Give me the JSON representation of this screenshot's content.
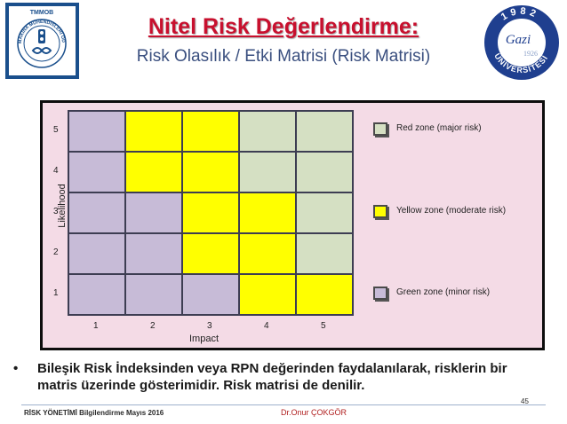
{
  "header": {
    "title": "Nitel Risk Değerlendirme:",
    "subtitle": "Risk Olasılık / Etki Matrisi (Risk Matrisi)"
  },
  "logos": {
    "left": {
      "name": "tmmob-makina-muhendisleri-odasi-logo",
      "text_top": "TMMOB",
      "text_ring": "MAKİNA MÜHENDİSLERİ ODASI"
    },
    "right": {
      "name": "gazi-universitesi-logo",
      "year": "1982",
      "text_ring": "ÜNİVERSİTESİ",
      "script": "Gazi",
      "number": "1926"
    }
  },
  "chart_data": {
    "type": "heatmap",
    "xlabel": "Impact",
    "ylabel": "Likelihood",
    "x_ticks": [
      "1",
      "2",
      "3",
      "4",
      "5"
    ],
    "y_ticks": [
      "5",
      "4",
      "3",
      "2",
      "1"
    ],
    "grid": [
      [
        "Green",
        "Yellow",
        "Yellow",
        "Red",
        "Red"
      ],
      [
        "Green",
        "Yellow",
        "Yellow",
        "Red",
        "Red"
      ],
      [
        "Green",
        "Green",
        "Yellow",
        "Yellow",
        "Red"
      ],
      [
        "Green",
        "Green",
        "Yellow",
        "Yellow",
        "Red"
      ],
      [
        "Green",
        "Green",
        "Green",
        "Yellow",
        "Yellow"
      ]
    ],
    "zone_colors": {
      "Red": "#d5e0c3",
      "Yellow": "#ffff00",
      "Green": "#c7bbd7"
    },
    "legend": [
      {
        "label": "Red zone (major risk)",
        "zone": "Red"
      },
      {
        "label": "Yellow zone (moderate risk)",
        "zone": "Yellow"
      },
      {
        "label": "Green zone (minor risk)",
        "zone": "Green"
      }
    ]
  },
  "body": {
    "bullet": "Bileşik Risk İndeksinden veya RPN değerinden faydalanılarak, risklerin bir matris üzerinde gösterimidir. Risk matrisi de denilir."
  },
  "footer": {
    "left": "RİSK YÖNETİMİ Bilgilendirme Mayıs 2016",
    "center": "Dr.Onur ÇOKGÖR",
    "page": "45"
  }
}
